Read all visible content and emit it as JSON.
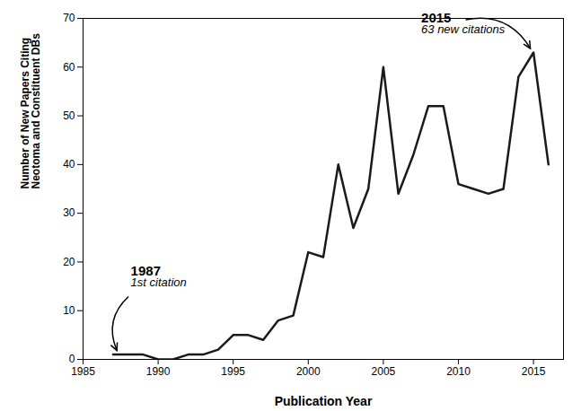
{
  "chart_data": {
    "type": "line",
    "x": [
      1987,
      1988,
      1989,
      1990,
      1991,
      1992,
      1993,
      1994,
      1995,
      1996,
      1997,
      1998,
      1999,
      2000,
      2001,
      2002,
      2003,
      2004,
      2005,
      2006,
      2007,
      2008,
      2009,
      2010,
      2011,
      2012,
      2013,
      2014,
      2015,
      2016
    ],
    "values": [
      1,
      1,
      1,
      0,
      0,
      1,
      1,
      2,
      5,
      5,
      4,
      8,
      9,
      22,
      21,
      40,
      27,
      35,
      60,
      34,
      42,
      52,
      52,
      36,
      35,
      34,
      35,
      58,
      63,
      40
    ],
    "color": "#1a1a1a",
    "xlim": [
      1985,
      2017
    ],
    "ylim": [
      0,
      70
    ],
    "xticks": [
      1985,
      1990,
      1995,
      2000,
      2005,
      2010,
      2015
    ],
    "yticks": [
      0,
      10,
      20,
      30,
      40,
      50,
      60,
      70
    ],
    "xlabel": "Publication Year",
    "ylabel": "Number of New Papers Citing\nNeotoma and Constituent DBs",
    "grid": false,
    "annotations": [
      {
        "x": 1987.1,
        "y": 1.0,
        "label": "1987",
        "text": "1st citation"
      },
      {
        "x": 2015.0,
        "y": 63.0,
        "label": "2015",
        "text": "63 new citations"
      }
    ]
  }
}
